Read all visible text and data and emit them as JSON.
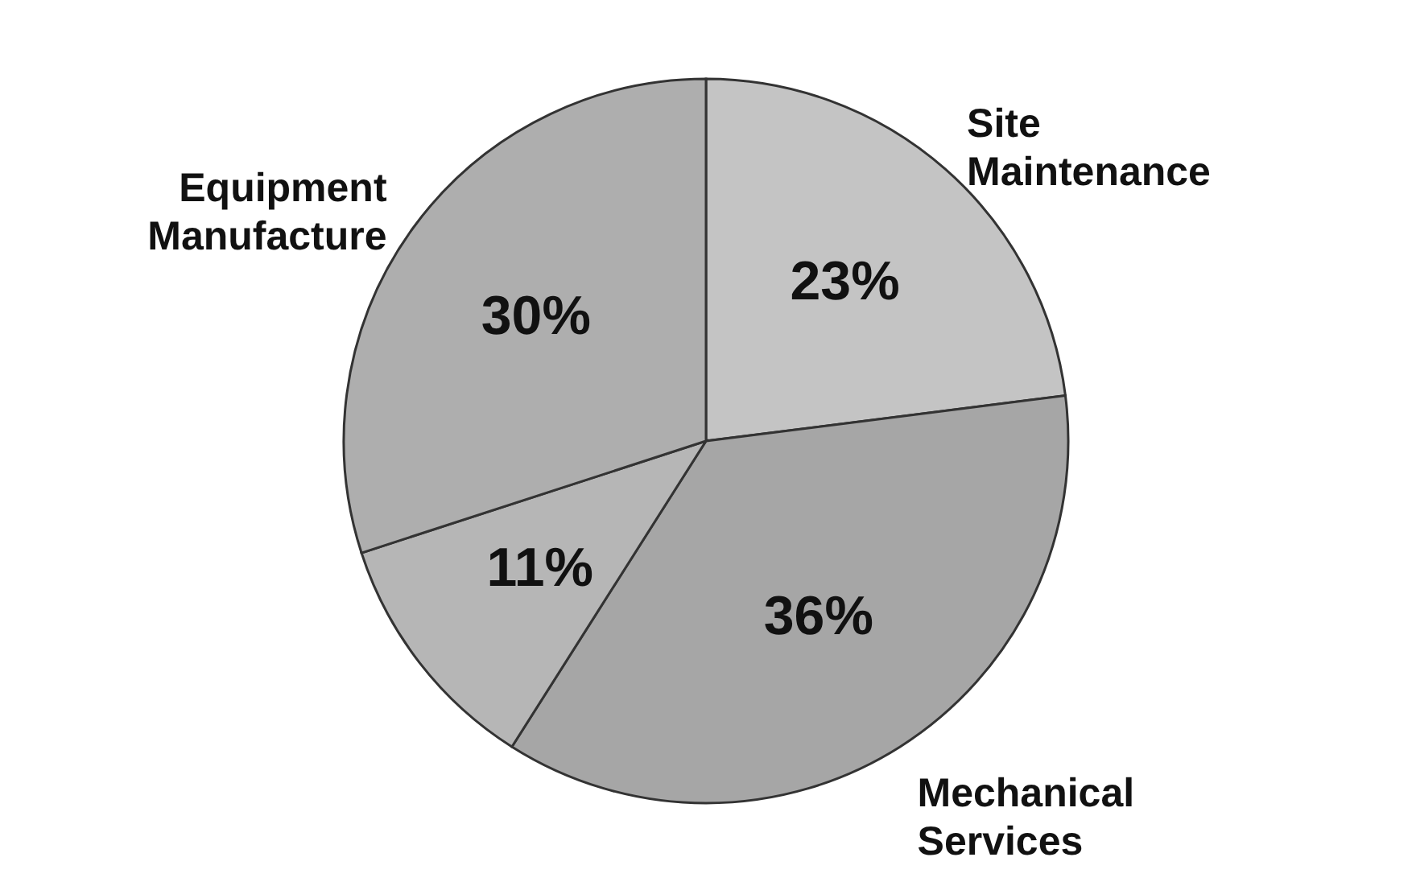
{
  "chart_data": {
    "type": "pie",
    "categories": [
      "Site Maintenance",
      "Mechanical Services",
      null,
      "Equipment Manufacture"
    ],
    "values": [
      23,
      36,
      11,
      30
    ],
    "value_labels": [
      "23%",
      "36%",
      "11%",
      "30%"
    ],
    "colors": [
      "#c4c4c4",
      "#a6a6a6",
      "#b6b6b6",
      "#aeaeae"
    ]
  }
}
